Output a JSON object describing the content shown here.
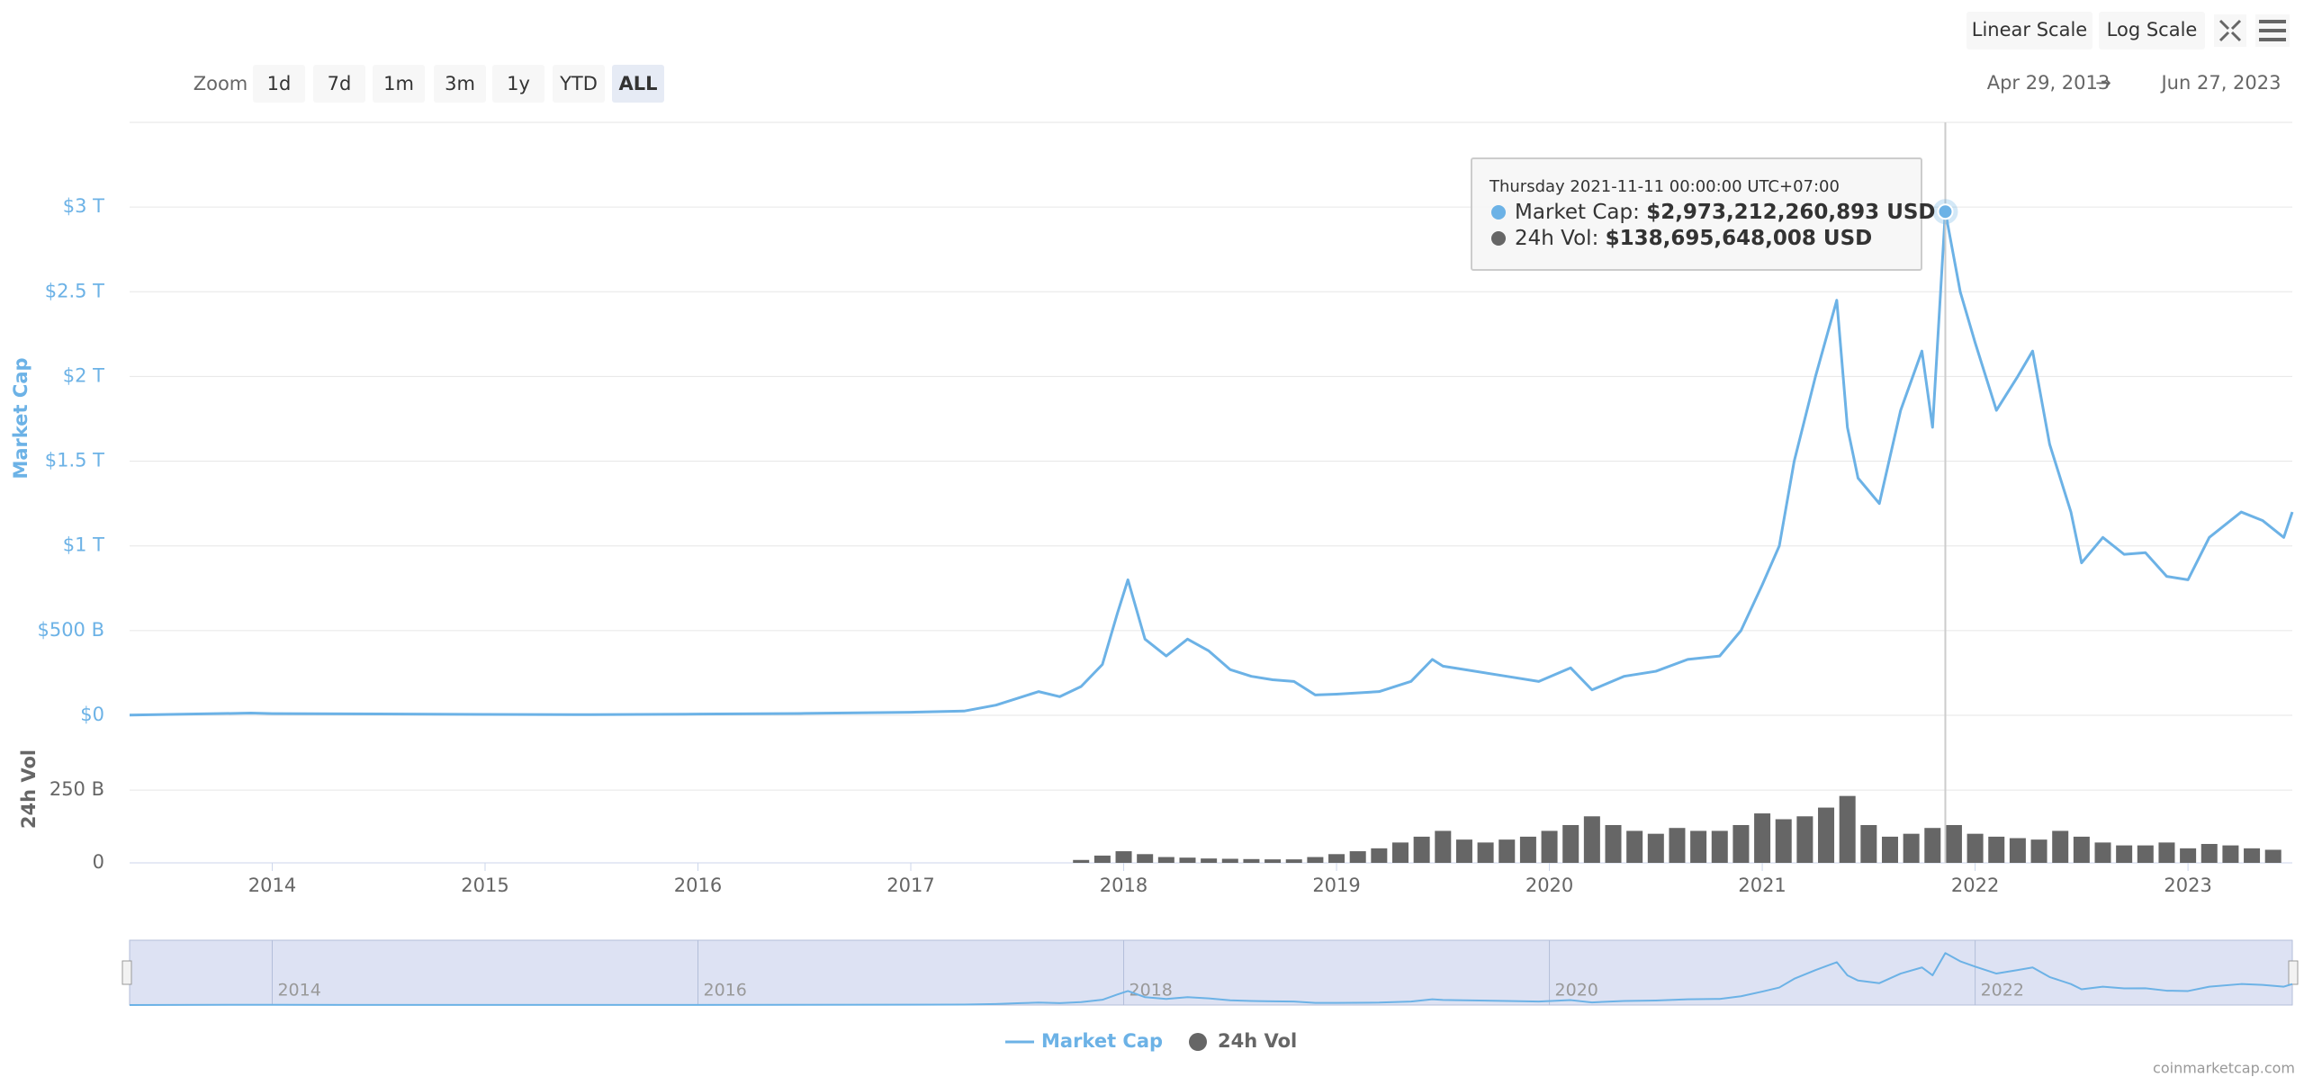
{
  "toolbar": {
    "scale_buttons": [
      "Linear Scale",
      "Log Scale"
    ],
    "zoom_label": "Zoom",
    "zoom_buttons": [
      "1d",
      "7d",
      "1m",
      "3m",
      "1y",
      "YTD",
      "ALL"
    ],
    "range_from": "Apr 29, 2013",
    "range_arrow": "→",
    "range_to": "Jun 27, 2023"
  },
  "tooltip": {
    "date": "Thursday 2021-11-11 00:00:00 UTC+07:00",
    "rows": [
      {
        "label": "Market Cap: ",
        "value": "$2,973,212,260,893 USD"
      },
      {
        "label": "24h Vol: ",
        "value": "$138,695,648,008 USD"
      }
    ]
  },
  "chart_data": [
    {
      "type": "line",
      "ylabel": "Market Cap",
      "x": [
        2013.33,
        2013.9,
        2014.0,
        2014.5,
        2015.0,
        2015.5,
        2016.0,
        2016.5,
        2017.0,
        2017.25,
        2017.4,
        2017.5,
        2017.6,
        2017.7,
        2017.8,
        2017.9,
        2017.97,
        2018.02,
        2018.1,
        2018.2,
        2018.3,
        2018.4,
        2018.5,
        2018.6,
        2018.7,
        2018.8,
        2018.9,
        2019.0,
        2019.2,
        2019.35,
        2019.45,
        2019.5,
        2019.6,
        2019.8,
        2019.95,
        2020.1,
        2020.2,
        2020.35,
        2020.5,
        2020.65,
        2020.8,
        2020.9,
        2021.0,
        2021.08,
        2021.15,
        2021.25,
        2021.35,
        2021.4,
        2021.45,
        2021.55,
        2021.65,
        2021.75,
        2021.8,
        2021.86,
        2021.93,
        2022.0,
        2022.1,
        2022.2,
        2022.27,
        2022.35,
        2022.45,
        2022.5,
        2022.6,
        2022.7,
        2022.8,
        2022.9,
        2023.0,
        2023.1,
        2023.25,
        2023.35,
        2023.45,
        2023.49
      ],
      "series": [
        {
          "name": "Market Cap",
          "color": "#6cb2e6",
          "values": [
            1.5,
            13,
            10,
            8,
            5,
            4,
            7,
            11,
            18,
            25,
            60,
            100,
            140,
            110,
            170,
            300,
            600,
            800,
            450,
            350,
            450,
            380,
            270,
            230,
            210,
            200,
            120,
            125,
            140,
            200,
            330,
            290,
            270,
            230,
            200,
            280,
            150,
            230,
            260,
            330,
            350,
            500,
            770,
            1000,
            1500,
            2000,
            2450,
            1700,
            1400,
            1250,
            1800,
            2150,
            1700,
            2973,
            2500,
            2200,
            1800,
            2000,
            2150,
            1600,
            1200,
            900,
            1050,
            950,
            960,
            820,
            800,
            1050,
            1200,
            1150,
            1050,
            1200
          ]
        }
      ],
      "xlim": [
        2013.33,
        2023.49
      ],
      "xticks": [
        2014,
        2015,
        2016,
        2017,
        2018,
        2019,
        2020,
        2021,
        2022,
        2023
      ],
      "ylim": [
        0,
        3500
      ],
      "yticks": [
        {
          "value": 0,
          "label": "$0"
        },
        {
          "value": 500,
          "label": "$500 B"
        },
        {
          "value": 1000,
          "label": "$1 T"
        },
        {
          "value": 1500,
          "label": "$1.5 T"
        },
        {
          "value": 2000,
          "label": "$2 T"
        },
        {
          "value": 2500,
          "label": "$2.5 T"
        },
        {
          "value": 3000,
          "label": "$3 T"
        }
      ],
      "grid": true
    },
    {
      "type": "bar",
      "ylabel": "24h Vol",
      "x": [
        2017.8,
        2017.9,
        2018.0,
        2018.1,
        2018.2,
        2018.3,
        2018.4,
        2018.5,
        2018.6,
        2018.7,
        2018.8,
        2018.9,
        2019.0,
        2019.1,
        2019.2,
        2019.3,
        2019.4,
        2019.5,
        2019.6,
        2019.7,
        2019.8,
        2019.9,
        2020.0,
        2020.1,
        2020.2,
        2020.3,
        2020.4,
        2020.5,
        2020.6,
        2020.7,
        2020.8,
        2020.9,
        2021.0,
        2021.1,
        2021.2,
        2021.3,
        2021.4,
        2021.5,
        2021.6,
        2021.7,
        2021.8,
        2021.9,
        2022.0,
        2022.1,
        2022.2,
        2022.3,
        2022.4,
        2022.5,
        2022.6,
        2022.7,
        2022.8,
        2022.9,
        2023.0,
        2023.1,
        2023.2,
        2023.3,
        2023.4
      ],
      "series": [
        {
          "name": "24h Vol",
          "color": "#666666",
          "values": [
            10,
            25,
            40,
            30,
            20,
            18,
            15,
            14,
            13,
            12,
            12,
            20,
            30,
            40,
            50,
            70,
            90,
            110,
            80,
            70,
            80,
            90,
            110,
            130,
            160,
            130,
            110,
            100,
            120,
            110,
            110,
            130,
            170,
            150,
            160,
            190,
            230,
            130,
            90,
            100,
            120,
            130,
            100,
            90,
            85,
            80,
            110,
            90,
            70,
            60,
            60,
            70,
            50,
            65,
            60,
            50,
            45
          ]
        }
      ],
      "xlim": [
        2013.33,
        2023.49
      ],
      "ylim": [
        0,
        430
      ],
      "yticks": [
        0,
        {
          "value": 250,
          "label": "250 B"
        }
      ]
    }
  ],
  "watermark": "coinmarketcap.com"
}
